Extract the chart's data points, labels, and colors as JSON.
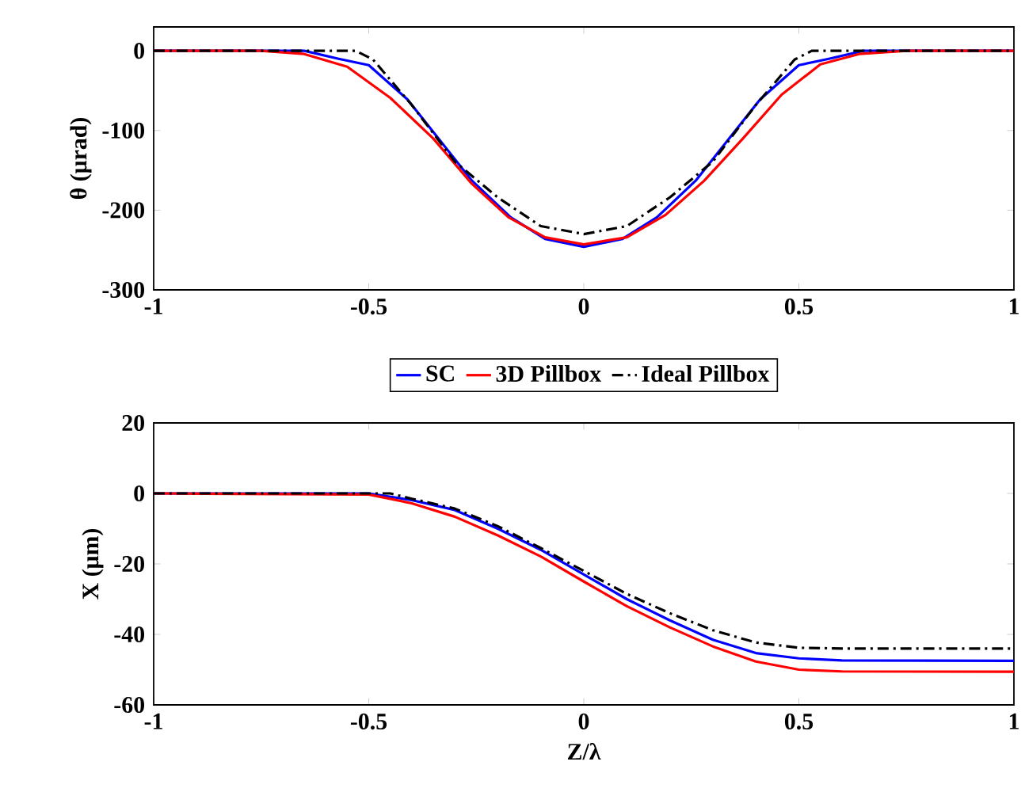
{
  "chart_data": [
    {
      "type": "line",
      "ylabel": "θ (μrad)",
      "xlim": [
        -1,
        1
      ],
      "ylim": [
        -300,
        30
      ],
      "xticks": [
        -1,
        -0.5,
        0,
        0.5,
        1
      ],
      "yticks": [
        -300,
        -200,
        -100,
        0
      ],
      "grid": false,
      "legend": "bottom",
      "marker": "none",
      "series": [
        {
          "name": "SC",
          "color": "#0000ff",
          "line_style": "solid",
          "x": [
            -1,
            -0.65,
            -0.57,
            -0.5,
            -0.41,
            -0.26,
            -0.17,
            -0.09,
            0,
            0.09,
            0.17,
            0.26,
            0.41,
            0.5,
            0.57,
            0.65,
            1
          ],
          "values": [
            0,
            0,
            -10,
            -18,
            -61,
            -163,
            -209,
            -236,
            -246,
            -236,
            -209,
            -163,
            -61,
            -18,
            -10,
            0,
            0
          ]
        },
        {
          "name": "3D Pillbox",
          "color": "#ff0000",
          "line_style": "solid",
          "x": [
            -1,
            -0.75,
            -0.65,
            -0.55,
            -0.45,
            -0.35,
            -0.26,
            -0.175,
            -0.09,
            0,
            0.1,
            0.19,
            0.28,
            0.37,
            0.46,
            0.55,
            0.64,
            0.75,
            1
          ],
          "values": [
            0,
            0,
            -4,
            -20,
            -59,
            -110,
            -167,
            -209,
            -234,
            -243,
            -234,
            -206,
            -163,
            -110,
            -55,
            -17,
            -4,
            0,
            0
          ]
        },
        {
          "name": "Ideal Pillbox",
          "color": "#000000",
          "line_style": "dashed",
          "x": [
            -1,
            -0.53,
            -0.49,
            -0.4,
            -0.3,
            -0.2,
            -0.1,
            0,
            0.1,
            0.2,
            0.3,
            0.4,
            0.49,
            0.53,
            1
          ],
          "values": [
            0,
            0,
            -11,
            -68,
            -139,
            -184,
            -220,
            -230,
            -220,
            -184,
            -139,
            -68,
            -11,
            0,
            0
          ]
        }
      ]
    },
    {
      "type": "line",
      "xlabel": "Z/λ",
      "ylabel": "X (μm)",
      "xlim": [
        -1,
        1
      ],
      "ylim": [
        -60,
        20
      ],
      "xticks": [
        -1,
        -0.5,
        0,
        0.5,
        1
      ],
      "yticks": [
        -60,
        -40,
        -20,
        0,
        20
      ],
      "grid": false,
      "legend": false,
      "marker": "none",
      "series": [
        {
          "color": "#0000ff",
          "line_style": "solid",
          "x": [
            -1,
            -0.5,
            -0.4,
            -0.3,
            -0.2,
            -0.1,
            0,
            0.1,
            0.2,
            0.3,
            0.4,
            0.5,
            0.6,
            1
          ],
          "values": [
            0,
            0,
            -1.9,
            -4.7,
            -10,
            -16,
            -23,
            -30,
            -36,
            -41.5,
            -45.3,
            -46.8,
            -47.4,
            -47.5
          ]
        },
        {
          "color": "#ff0000",
          "line_style": "solid",
          "x": [
            -1,
            -0.5,
            -0.4,
            -0.3,
            -0.2,
            -0.1,
            0,
            0.1,
            0.2,
            0.3,
            0.4,
            0.5,
            0.6,
            1
          ],
          "values": [
            0,
            -0.3,
            -2.8,
            -6.6,
            -11.9,
            -17.9,
            -25,
            -32,
            -38,
            -43.4,
            -47.7,
            -50,
            -50.5,
            -50.6
          ]
        },
        {
          "color": "#000000",
          "line_style": "dashed",
          "x": [
            -1,
            -0.45,
            -0.4,
            -0.3,
            -0.2,
            -0.1,
            0,
            0.1,
            0.2,
            0.3,
            0.4,
            0.5,
            0.6,
            1
          ],
          "values": [
            0,
            0,
            -1.5,
            -4.3,
            -9.3,
            -15.5,
            -22,
            -28.5,
            -34,
            -38.8,
            -42.3,
            -43.8,
            -44,
            -44
          ]
        }
      ]
    }
  ]
}
